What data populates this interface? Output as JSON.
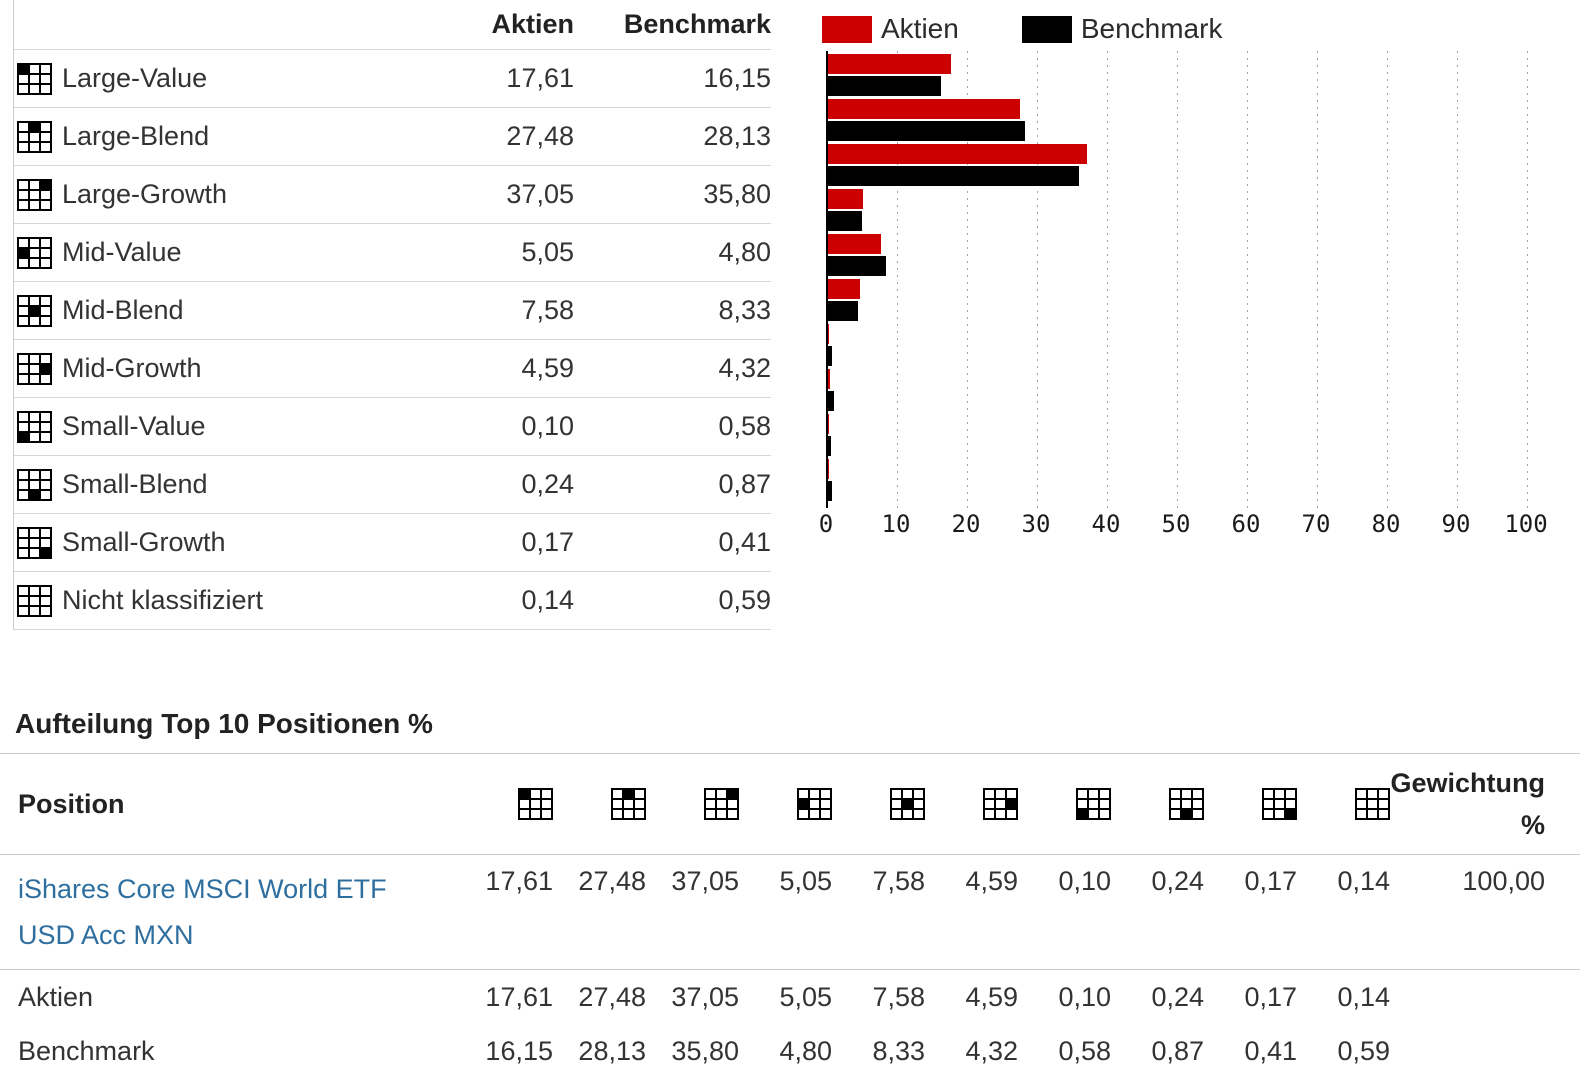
{
  "style_table": {
    "col_aktien": "Aktien",
    "col_benchmark": "Benchmark",
    "rows": [
      {
        "label": "Large-Value",
        "box": 0,
        "aktien": "17,61",
        "benchmark": "16,15"
      },
      {
        "label": "Large-Blend",
        "box": 1,
        "aktien": "27,48",
        "benchmark": "28,13"
      },
      {
        "label": "Large-Growth",
        "box": 2,
        "aktien": "37,05",
        "benchmark": "35,80"
      },
      {
        "label": "Mid-Value",
        "box": 3,
        "aktien": "5,05",
        "benchmark": "4,80"
      },
      {
        "label": "Mid-Blend",
        "box": 4,
        "aktien": "7,58",
        "benchmark": "8,33"
      },
      {
        "label": "Mid-Growth",
        "box": 5,
        "aktien": "4,59",
        "benchmark": "4,32"
      },
      {
        "label": "Small-Value",
        "box": 6,
        "aktien": "0,10",
        "benchmark": "0,58"
      },
      {
        "label": "Small-Blend",
        "box": 7,
        "aktien": "0,24",
        "benchmark": "0,87"
      },
      {
        "label": "Small-Growth",
        "box": 8,
        "aktien": "0,17",
        "benchmark": "0,41"
      },
      {
        "label": "Nicht klassifiziert",
        "box": null,
        "aktien": "0,14",
        "benchmark": "0,59"
      }
    ]
  },
  "chart_data": {
    "type": "bar",
    "orientation": "horizontal",
    "title": "",
    "xlabel": "",
    "ylabel": "",
    "categories": [
      "Large-Value",
      "Large-Blend",
      "Large-Growth",
      "Mid-Value",
      "Mid-Blend",
      "Mid-Growth",
      "Small-Value",
      "Small-Blend",
      "Small-Growth",
      "Nicht klassifiziert"
    ],
    "series": [
      {
        "name": "Aktien",
        "color": "#cc0000",
        "values": [
          17.61,
          27.48,
          37.05,
          5.05,
          7.58,
          4.59,
          0.1,
          0.24,
          0.17,
          0.14
        ]
      },
      {
        "name": "Benchmark",
        "color": "#000000",
        "values": [
          16.15,
          28.13,
          35.8,
          4.8,
          8.33,
          4.32,
          0.58,
          0.87,
          0.41,
          0.59
        ]
      }
    ],
    "xlim": [
      0,
      100
    ],
    "xticks": [
      0,
      10,
      20,
      30,
      40,
      50,
      60,
      70,
      80,
      90,
      100
    ],
    "grid": "vertical-dotted",
    "legend_position": "top-left"
  },
  "holdings": {
    "title": "Aufteilung Top 10 Positionen %",
    "position_header": "Position",
    "weight_header_line1": "Gewichtung",
    "weight_header_line2": "%",
    "column_boxes": [
      0,
      1,
      2,
      3,
      4,
      5,
      6,
      7,
      8,
      null
    ],
    "rows": [
      {
        "name_line1": "iShares Core MSCI World ETF",
        "name_line2": "USD Acc MXN",
        "is_link": true,
        "values": [
          "17,61",
          "27,48",
          "37,05",
          "5,05",
          "7,58",
          "4,59",
          "0,10",
          "0,24",
          "0,17",
          "0,14"
        ],
        "weight": "100,00"
      },
      {
        "name_line1": "Aktien",
        "name_line2": "",
        "is_link": false,
        "values": [
          "17,61",
          "27,48",
          "37,05",
          "5,05",
          "7,58",
          "4,59",
          "0,10",
          "0,24",
          "0,17",
          "0,14"
        ],
        "weight": ""
      },
      {
        "name_line1": "Benchmark",
        "name_line2": "",
        "is_link": false,
        "values": [
          "16,15",
          "28,13",
          "35,80",
          "4,80",
          "8,33",
          "4,32",
          "0,58",
          "0,87",
          "0,41",
          "0,59"
        ],
        "weight": ""
      }
    ]
  }
}
